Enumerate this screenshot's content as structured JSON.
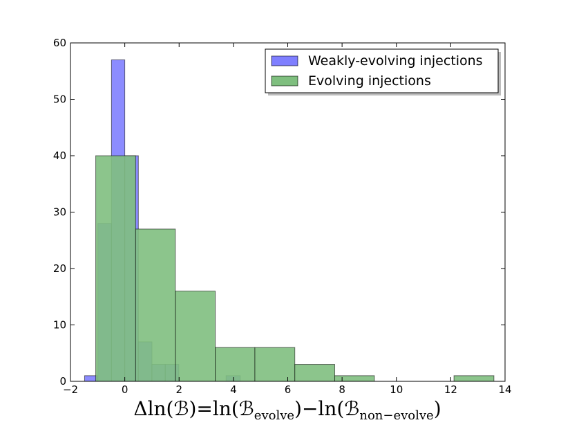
{
  "chart_data": {
    "type": "bar",
    "title": "",
    "xlabel": "Δln(ℬ)=ln(ℬₑᵥₒₗᵥₑ)−ln(ℬₙₒₙ₋ₑᵥₒₗᵥₑ)",
    "xlabel_parts": {
      "main_1": "Δln(ℬ)=ln(ℬ",
      "sub_1": "evolve",
      "main_2": ")−ln(ℬ",
      "sub_2": "non−evolve",
      "main_3": ")"
    },
    "ylabel": "",
    "xlim": [
      -2,
      14
    ],
    "ylim": [
      0,
      60
    ],
    "xticks": [
      -2,
      0,
      2,
      4,
      6,
      8,
      10,
      12,
      14
    ],
    "yticks": [
      0,
      10,
      20,
      30,
      40,
      50,
      60
    ],
    "grid": false,
    "legend_position": "top-right",
    "series": [
      {
        "name": "Weakly-evolving injections",
        "color": "#7f7fff",
        "bins": [
          {
            "x0": -1.48,
            "x1": -0.99,
            "value": 1
          },
          {
            "x0": -0.99,
            "x1": -0.49,
            "value": 28
          },
          {
            "x0": -0.49,
            "x1": 0.0,
            "value": 57
          },
          {
            "x0": 0.0,
            "x1": 0.5,
            "value": 40
          },
          {
            "x0": 0.5,
            "x1": 1.0,
            "value": 7
          },
          {
            "x0": 1.0,
            "x1": 1.49,
            "value": 3
          },
          {
            "x0": 1.49,
            "x1": 1.99,
            "value": 3
          },
          {
            "x0": 3.73,
            "x1": 4.25,
            "value": 1
          }
        ]
      },
      {
        "name": "Evolving injections",
        "color": "#7fbf7f",
        "bins": [
          {
            "x0": -1.07,
            "x1": 0.4,
            "value": 40
          },
          {
            "x0": 0.4,
            "x1": 1.86,
            "value": 27
          },
          {
            "x0": 1.86,
            "x1": 3.33,
            "value": 16
          },
          {
            "x0": 3.33,
            "x1": 4.79,
            "value": 6
          },
          {
            "x0": 4.79,
            "x1": 6.26,
            "value": 6
          },
          {
            "x0": 6.26,
            "x1": 7.73,
            "value": 3
          },
          {
            "x0": 7.73,
            "x1": 9.19,
            "value": 1
          },
          {
            "x0": 9.19,
            "x1": 10.66,
            "value": 0
          },
          {
            "x0": 10.66,
            "x1": 12.12,
            "value": 0
          },
          {
            "x0": 12.12,
            "x1": 13.59,
            "value": 1
          }
        ]
      }
    ]
  }
}
